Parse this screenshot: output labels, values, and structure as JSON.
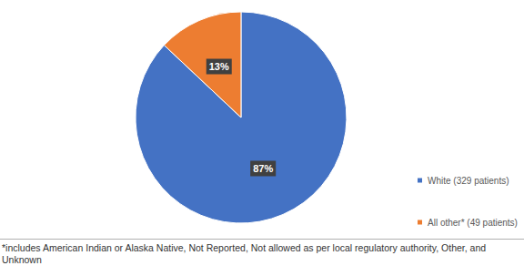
{
  "chart_data": {
    "type": "pie",
    "categories": [
      "White (329 patients)",
      "All other* (49 patients)"
    ],
    "values": [
      87,
      13
    ],
    "value_labels": [
      "87%",
      "13%"
    ],
    "colors": [
      "#4472c4",
      "#ed7d31"
    ],
    "legend": "right",
    "data_labels": true,
    "footnote": "*includes American Indian or Alaska Native, Not Reported, Not allowed as per local regulatory authority, Other, and Unknown"
  }
}
